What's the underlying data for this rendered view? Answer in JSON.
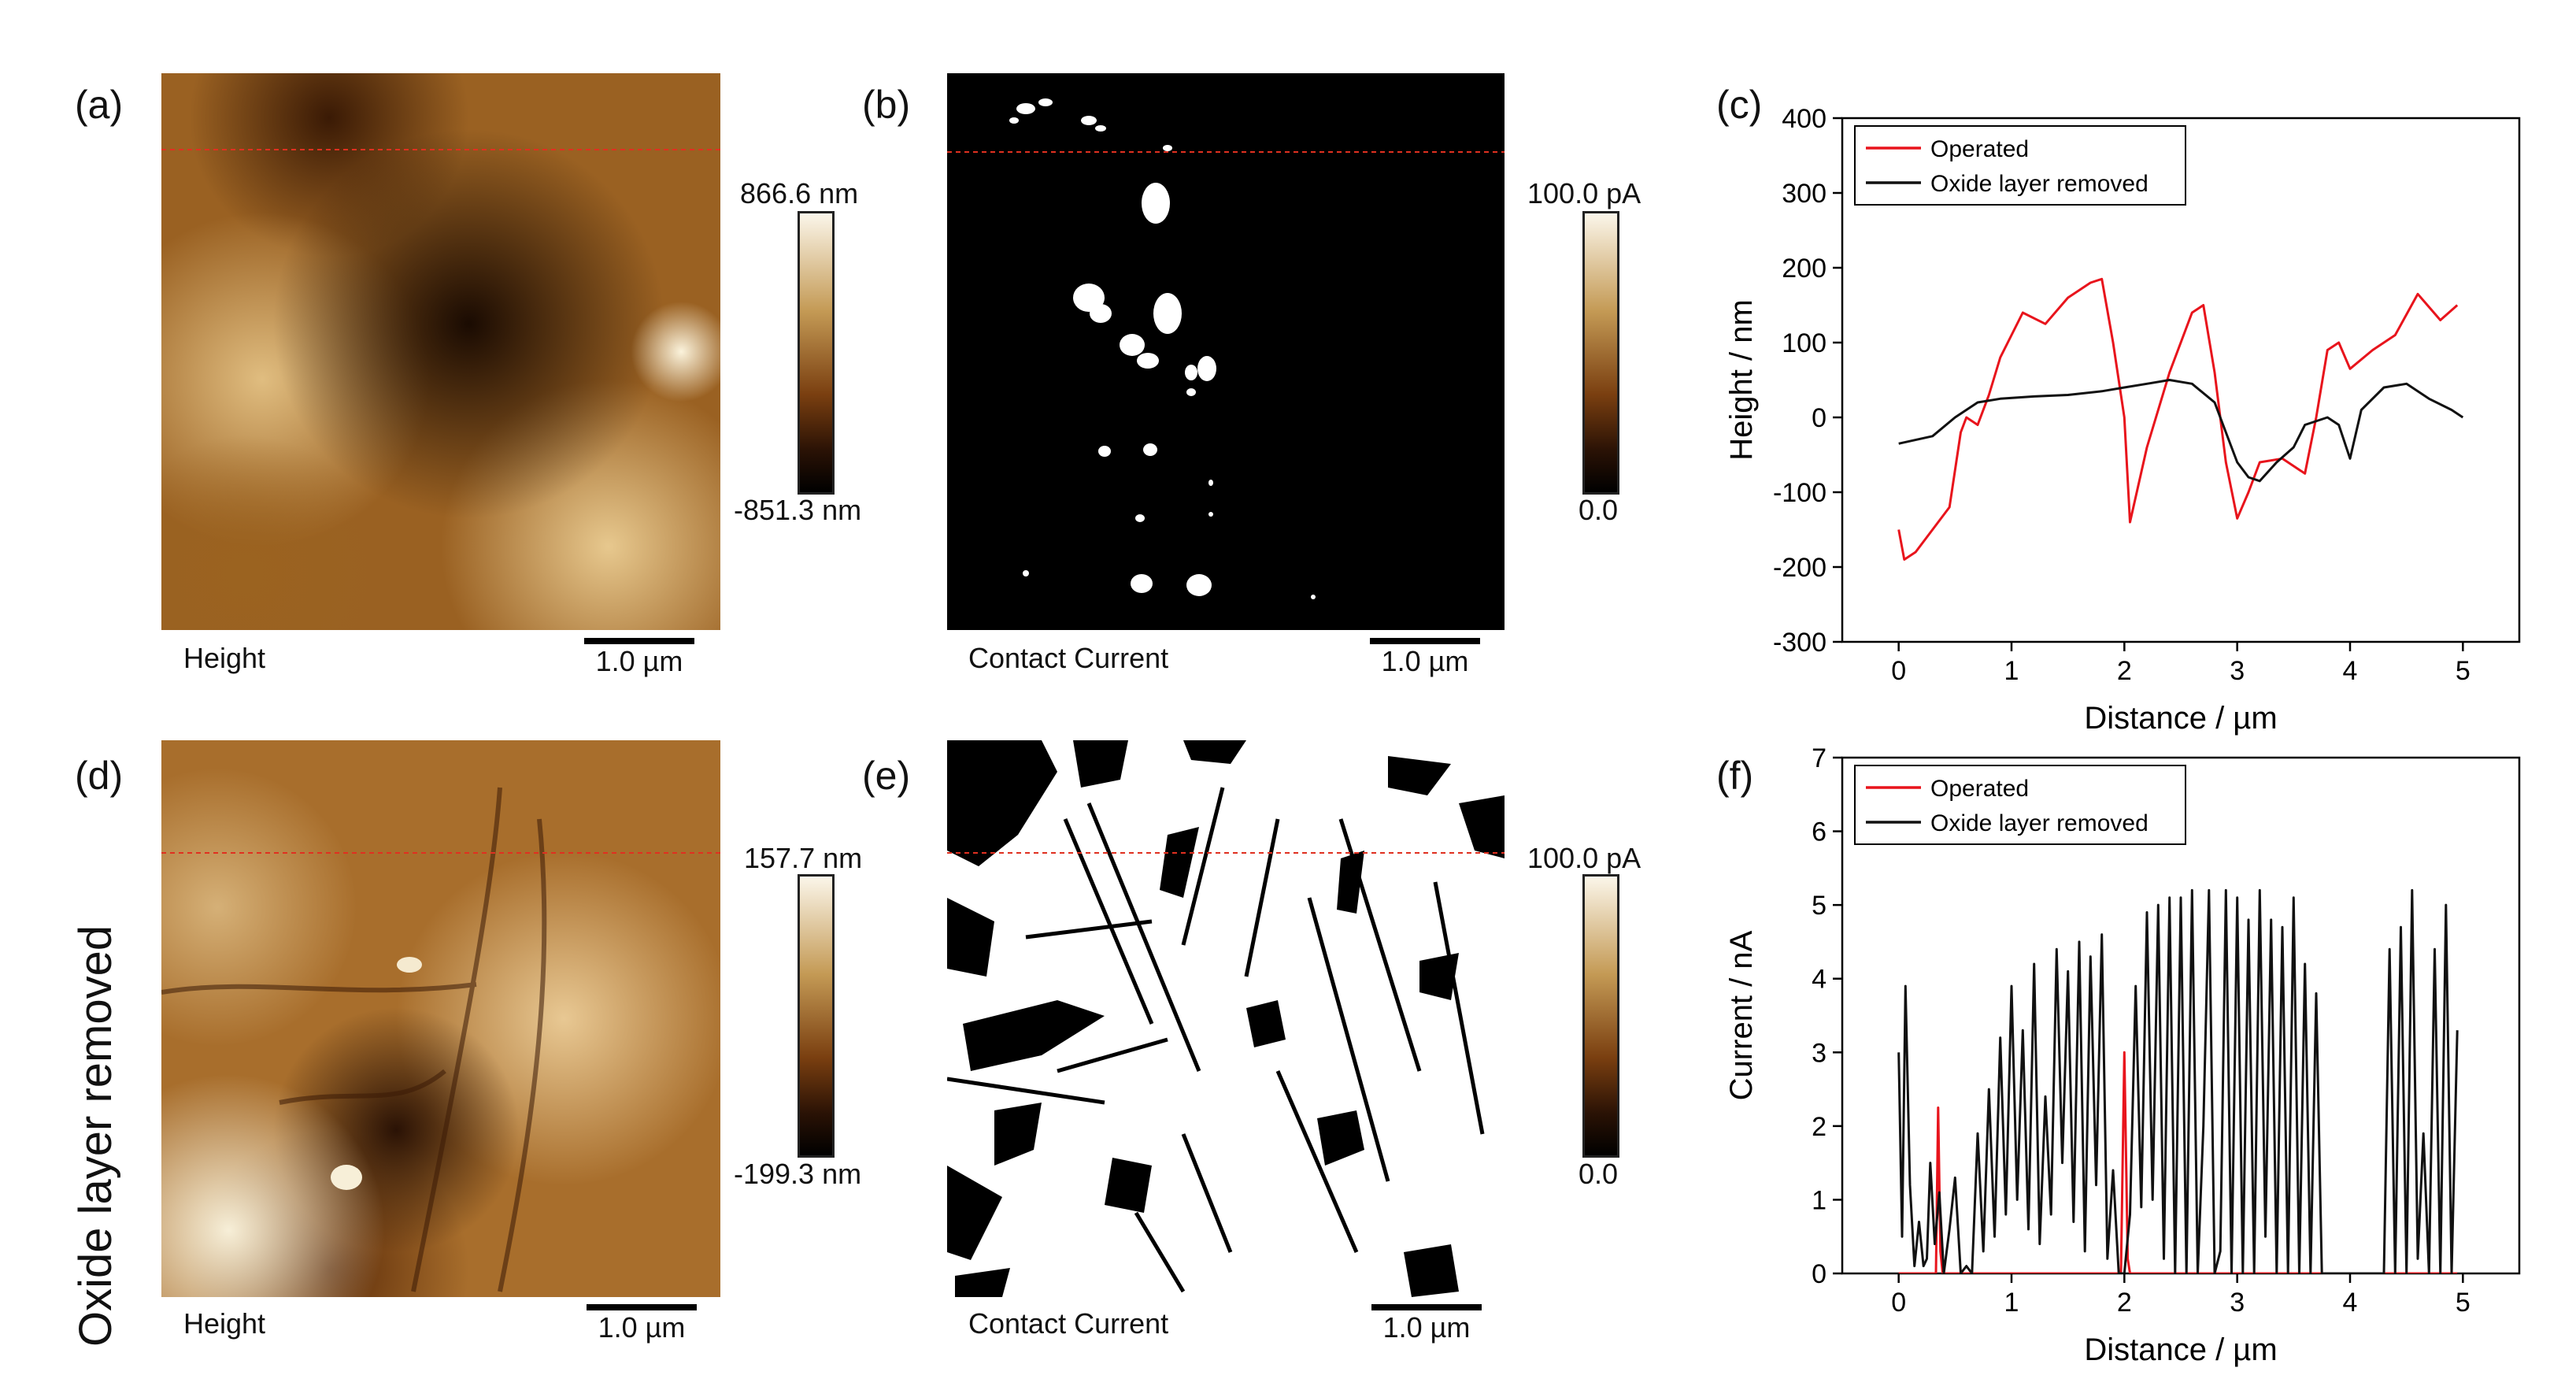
{
  "side_label": "Oxide layer removed",
  "panels": {
    "a": {
      "label": "(a)",
      "caption": "Height",
      "scalebar": "1.0 µm",
      "cbar_max": "866.6 nm",
      "cbar_min": "-851.3 nm"
    },
    "b": {
      "label": "(b)",
      "caption": "Contact Current",
      "scalebar": "1.0 µm",
      "cbar_max": "100.0 pA",
      "cbar_min": "0.0"
    },
    "c": {
      "label": "(c)"
    },
    "d": {
      "label": "(d)",
      "caption": "Height",
      "scalebar": "1.0 µm",
      "cbar_max": "157.7 nm",
      "cbar_min": "-199.3 nm"
    },
    "e": {
      "label": "(e)",
      "caption": "Contact Current",
      "scalebar": "1.0 µm",
      "cbar_max": "100.0 pA",
      "cbar_min": "0.0"
    },
    "f": {
      "label": "(f)"
    }
  },
  "colors": {
    "operated": "#e8141c",
    "removed": "#111111",
    "afm_dark": "#1a0b02",
    "afm_light": "#f7efd8",
    "guide_line": "#e03020"
  },
  "chart_data": [
    {
      "type": "line",
      "panel": "c",
      "xlabel": "Distance / µm",
      "ylabel": "Height / nm",
      "xlim": [
        -0.5,
        5.5
      ],
      "ylim": [
        -300,
        400
      ],
      "xticks": [
        0,
        1,
        2,
        3,
        4,
        5
      ],
      "yticks": [
        -300,
        -200,
        -100,
        0,
        100,
        200,
        300,
        400
      ],
      "legend_position": "top-left",
      "series": [
        {
          "name": "Operated",
          "color": "#e8141c",
          "x": [
            0,
            0.05,
            0.15,
            0.3,
            0.45,
            0.55,
            0.6,
            0.7,
            0.8,
            0.9,
            1.0,
            1.1,
            1.3,
            1.5,
            1.7,
            1.8,
            1.9,
            2.0,
            2.05,
            2.2,
            2.4,
            2.6,
            2.7,
            2.8,
            2.9,
            3.0,
            3.1,
            3.2,
            3.4,
            3.6,
            3.7,
            3.8,
            3.9,
            4.0,
            4.2,
            4.4,
            4.6,
            4.8,
            4.95
          ],
          "y": [
            -150,
            -190,
            -180,
            -150,
            -120,
            -20,
            0,
            -10,
            30,
            80,
            110,
            140,
            125,
            160,
            180,
            185,
            100,
            0,
            -140,
            -40,
            60,
            140,
            150,
            60,
            -60,
            -135,
            -100,
            -60,
            -55,
            -75,
            0,
            90,
            100,
            65,
            90,
            110,
            165,
            130,
            150
          ]
        },
        {
          "name": "Oxide layer removed",
          "color": "#111111",
          "x": [
            0,
            0.3,
            0.5,
            0.7,
            0.9,
            1.2,
            1.5,
            1.8,
            2.0,
            2.2,
            2.4,
            2.6,
            2.8,
            2.9,
            3.0,
            3.1,
            3.2,
            3.35,
            3.5,
            3.6,
            3.8,
            3.9,
            4.0,
            4.1,
            4.3,
            4.5,
            4.7,
            4.9,
            5.0
          ],
          "y": [
            -35,
            -25,
            0,
            20,
            25,
            28,
            30,
            35,
            40,
            45,
            50,
            45,
            20,
            -20,
            -60,
            -80,
            -85,
            -60,
            -40,
            -10,
            0,
            -10,
            -55,
            10,
            40,
            45,
            25,
            10,
            0
          ]
        }
      ]
    },
    {
      "type": "line",
      "panel": "f",
      "xlabel": "Distance / µm",
      "ylabel": "Current / nA",
      "xlim": [
        -0.5,
        5.5
      ],
      "ylim": [
        0,
        7
      ],
      "xticks": [
        0,
        1,
        2,
        3,
        4,
        5
      ],
      "yticks": [
        0,
        1,
        2,
        3,
        4,
        5,
        6,
        7
      ],
      "legend_position": "top-left",
      "series": [
        {
          "name": "Operated",
          "color": "#e8141c",
          "x": [
            0,
            0.33,
            0.35,
            0.37,
            0.39,
            1.97,
            2.0,
            2.03,
            2.05,
            4.95
          ],
          "y": [
            0,
            0,
            2.25,
            0.3,
            0,
            0,
            3.0,
            0.2,
            0,
            0
          ]
        },
        {
          "name": "Oxide layer removed",
          "color": "#111111",
          "x": [
            0.0,
            0.03,
            0.06,
            0.1,
            0.14,
            0.18,
            0.22,
            0.25,
            0.28,
            0.32,
            0.36,
            0.4,
            0.45,
            0.5,
            0.55,
            0.6,
            0.65,
            0.7,
            0.75,
            0.8,
            0.85,
            0.9,
            0.95,
            1.0,
            1.05,
            1.1,
            1.15,
            1.2,
            1.25,
            1.3,
            1.35,
            1.4,
            1.45,
            1.5,
            1.55,
            1.6,
            1.65,
            1.7,
            1.75,
            1.8,
            1.85,
            1.9,
            1.95,
            2.0,
            2.05,
            2.1,
            2.15,
            2.2,
            2.25,
            2.3,
            2.35,
            2.4,
            2.45,
            2.5,
            2.55,
            2.6,
            2.65,
            2.7,
            2.75,
            2.8,
            2.85,
            2.9,
            2.95,
            3.0,
            3.05,
            3.1,
            3.15,
            3.2,
            3.25,
            3.3,
            3.35,
            3.4,
            3.45,
            3.5,
            3.55,
            3.6,
            3.65,
            3.7,
            3.75,
            3.8,
            3.85,
            3.9,
            3.95,
            4.0,
            4.1,
            4.2,
            4.3,
            4.35,
            4.4,
            4.45,
            4.5,
            4.55,
            4.6,
            4.65,
            4.7,
            4.75,
            4.8,
            4.85,
            4.9,
            4.95
          ],
          "y": [
            3.0,
            0.5,
            3.9,
            1.2,
            0.1,
            0.7,
            0.1,
            0.2,
            1.5,
            0.4,
            1.1,
            0.0,
            0.6,
            1.3,
            0.0,
            0.1,
            0.0,
            1.9,
            0.3,
            2.5,
            0.5,
            3.2,
            0.8,
            3.9,
            1.0,
            3.3,
            0.6,
            4.2,
            0.4,
            2.4,
            0.8,
            4.4,
            1.5,
            4.1,
            0.7,
            4.5,
            0.3,
            4.3,
            1.2,
            4.6,
            0.2,
            1.4,
            0.0,
            0.0,
            0.8,
            3.9,
            0.9,
            4.9,
            1.0,
            5.0,
            0.2,
            5.1,
            0.0,
            5.1,
            0.0,
            5.2,
            0.0,
            2.0,
            5.2,
            0.0,
            0.3,
            5.2,
            0.0,
            5.1,
            0.0,
            4.8,
            0.0,
            5.2,
            0.5,
            4.8,
            0.0,
            4.7,
            0.0,
            5.1,
            0.0,
            4.2,
            0.0,
            3.8,
            0.0,
            0.0,
            0.0,
            0.0,
            0.0,
            0.0,
            0.0,
            0.0,
            0.0,
            4.4,
            0.0,
            4.7,
            0.0,
            5.2,
            0.2,
            1.9,
            0.0,
            4.4,
            0.0,
            5.0,
            0.0,
            3.3
          ]
        }
      ]
    }
  ]
}
